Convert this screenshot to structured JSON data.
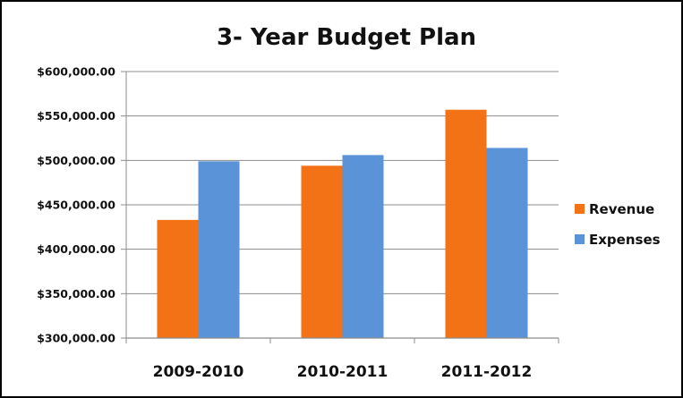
{
  "chart_data": {
    "type": "bar",
    "title": "3- Year Budget Plan",
    "xlabel": "",
    "ylabel": "",
    "categories": [
      "2009-2010",
      "2010-2011",
      "2011-2012"
    ],
    "series": [
      {
        "name": "Revenue",
        "color": "#f47216",
        "values": [
          433000,
          494000,
          557000
        ]
      },
      {
        "name": "Expenses",
        "color": "#5b93d9",
        "values": [
          499000,
          506000,
          514000
        ]
      }
    ],
    "ylim": [
      300000,
      600000
    ],
    "yticks": [
      {
        "value": 300000,
        "label": "$300,000.00"
      },
      {
        "value": 350000,
        "label": "$350,000.00"
      },
      {
        "value": 400000,
        "label": "$400,000.00"
      },
      {
        "value": 450000,
        "label": "$450,000.00"
      },
      {
        "value": 500000,
        "label": "$500,000.00"
      },
      {
        "value": 550000,
        "label": "$550,000.00"
      },
      {
        "value": 600000,
        "label": "$600,000.00"
      }
    ],
    "grid": true,
    "legend": "right",
    "grid_color": "#8c8c8c",
    "axis_color": "#8c8c8c"
  }
}
